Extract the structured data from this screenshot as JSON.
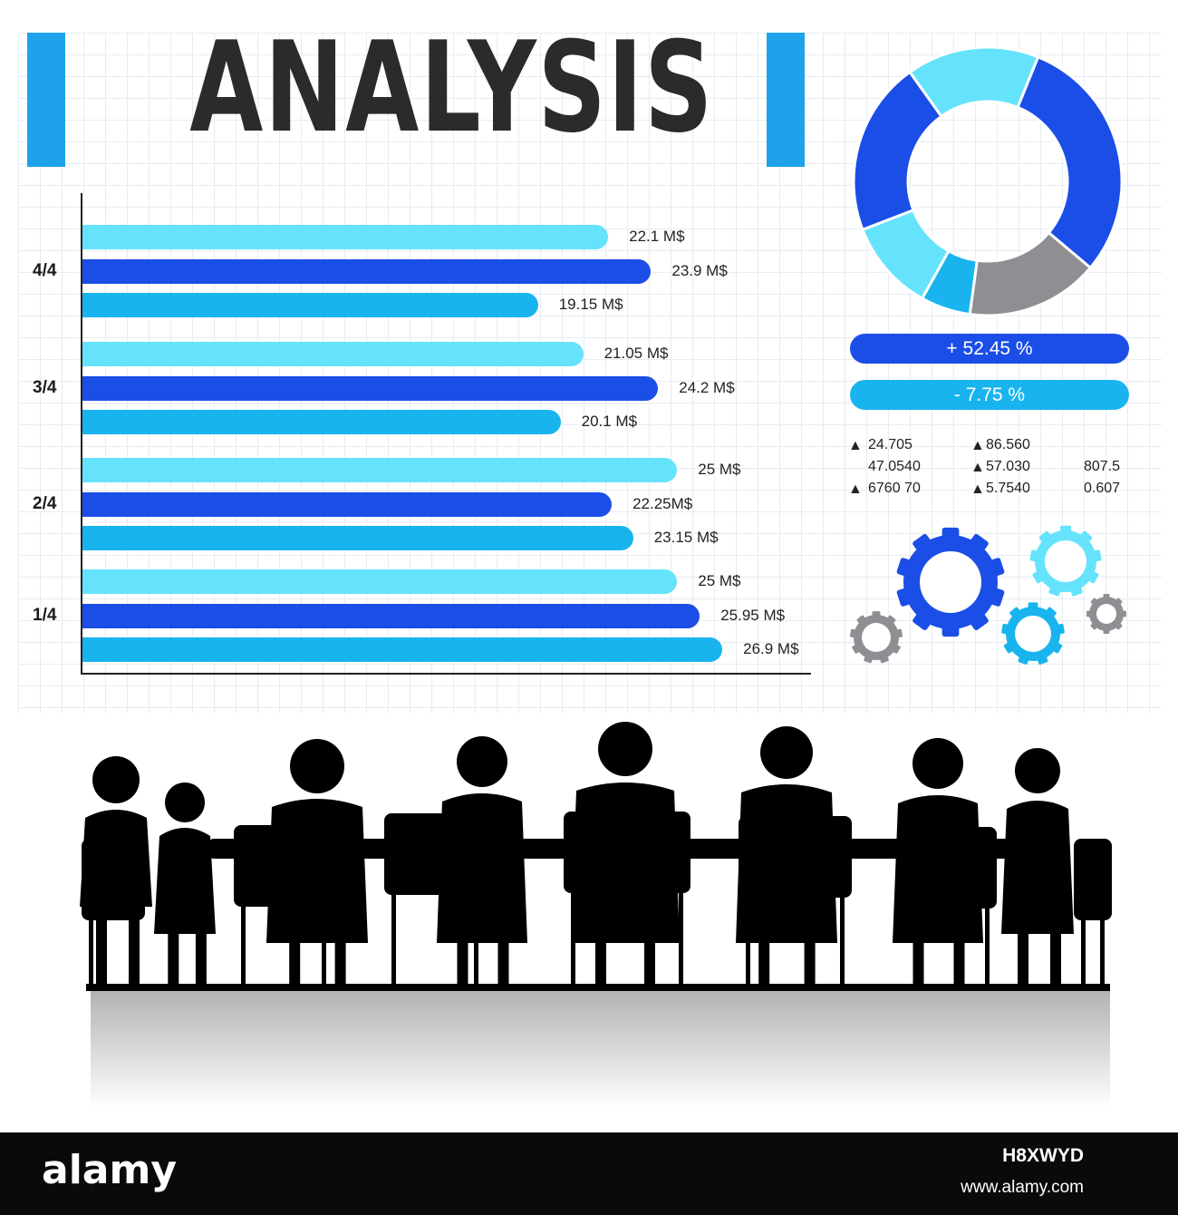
{
  "title": "ANALYSIS",
  "colors": {
    "light": "#66e3fc",
    "dark": "#1b4ee6",
    "mid": "#19b4ee",
    "grey": "#8f8f93",
    "accent": "#1ea2ec"
  },
  "chart_data": [
    {
      "type": "bar",
      "orientation": "horizontal",
      "categories": [
        "4/4",
        "3/4",
        "2/4",
        "1/4"
      ],
      "series": [
        {
          "values": [
            22.1,
            21.05,
            25,
            25
          ],
          "labels": [
            "22.1 M$",
            "21.05 M$",
            "25 M$",
            "25 M$"
          ]
        },
        {
          "values": [
            23.9,
            24.2,
            22.25,
            25.95
          ],
          "labels": [
            "23.9 M$",
            "24.2 M$",
            "22.25M$",
            "25.95 M$"
          ]
        },
        {
          "values": [
            19.15,
            20.1,
            23.15,
            26.9
          ],
          "labels": [
            "19.15 M$",
            "20.1 M$",
            "23.15 M$",
            "26.9 M$"
          ]
        }
      ],
      "unit": "M$"
    },
    {
      "type": "pie",
      "style": "donut",
      "slices": [
        {
          "value": 16,
          "color": "#66e3fc"
        },
        {
          "value": 30,
          "color": "#1b4ee6"
        },
        {
          "value": 16,
          "color": "#8f8f93"
        },
        {
          "value": 6,
          "color": "#19b4ee"
        },
        {
          "value": 11,
          "color": "#66e3fc"
        },
        {
          "value": 21,
          "color": "#1b4ee6"
        }
      ]
    }
  ],
  "pills": [
    "+ 52.45 %",
    "- 7.75 %"
  ],
  "stats": {
    "col1": [
      "24.705",
      "47.0540",
      "6760 70"
    ],
    "col2": [
      "86.560",
      "57.030",
      "5.7540"
    ],
    "col3": [
      "807.5",
      "0.607"
    ],
    "arrow": "▲"
  },
  "footer": {
    "brand": "alamy",
    "image_id": "H8XWYD",
    "url": "www.alamy.com"
  }
}
